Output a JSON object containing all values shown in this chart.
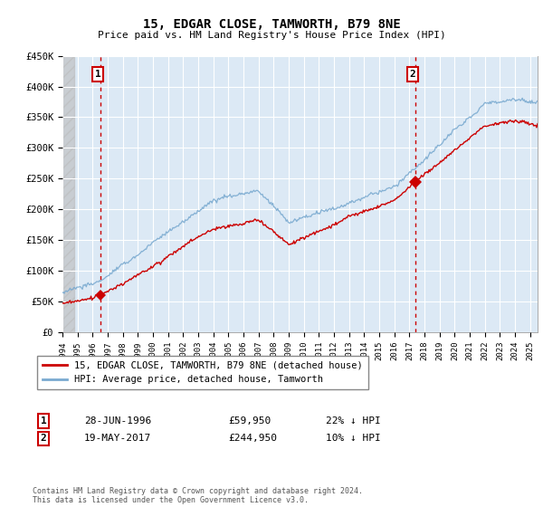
{
  "title": "15, EDGAR CLOSE, TAMWORTH, B79 8NE",
  "subtitle": "Price paid vs. HM Land Registry's House Price Index (HPI)",
  "ylim": [
    0,
    450000
  ],
  "yticks": [
    0,
    50000,
    100000,
    150000,
    200000,
    250000,
    300000,
    350000,
    400000,
    450000
  ],
  "ytick_labels": [
    "£0",
    "£50K",
    "£100K",
    "£150K",
    "£200K",
    "£250K",
    "£300K",
    "£350K",
    "£400K",
    "£450K"
  ],
  "legend_entries": [
    "15, EDGAR CLOSE, TAMWORTH, B79 8NE (detached house)",
    "HPI: Average price, detached house, Tamworth"
  ],
  "legend_colors": [
    "#cc0000",
    "#7aaad0"
  ],
  "annotation1": {
    "label": "1",
    "date": "28-JUN-1996",
    "price": "£59,950",
    "hpi": "22% ↓ HPI"
  },
  "annotation2": {
    "label": "2",
    "date": "19-MAY-2017",
    "price": "£244,950",
    "hpi": "10% ↓ HPI"
  },
  "footer": "Contains HM Land Registry data © Crown copyright and database right 2024.\nThis data is licensed under the Open Government Licence v3.0.",
  "sale1_x": 1996.49,
  "sale1_y": 59950,
  "sale2_x": 2017.37,
  "sale2_y": 244950,
  "hatch_end_x": 1994.75,
  "xmin": 1994.0,
  "xmax": 2025.5,
  "line_color_red": "#cc0000",
  "line_color_blue": "#7aaad0",
  "bg_color": "#dce9f5",
  "grid_color": "#ffffff"
}
